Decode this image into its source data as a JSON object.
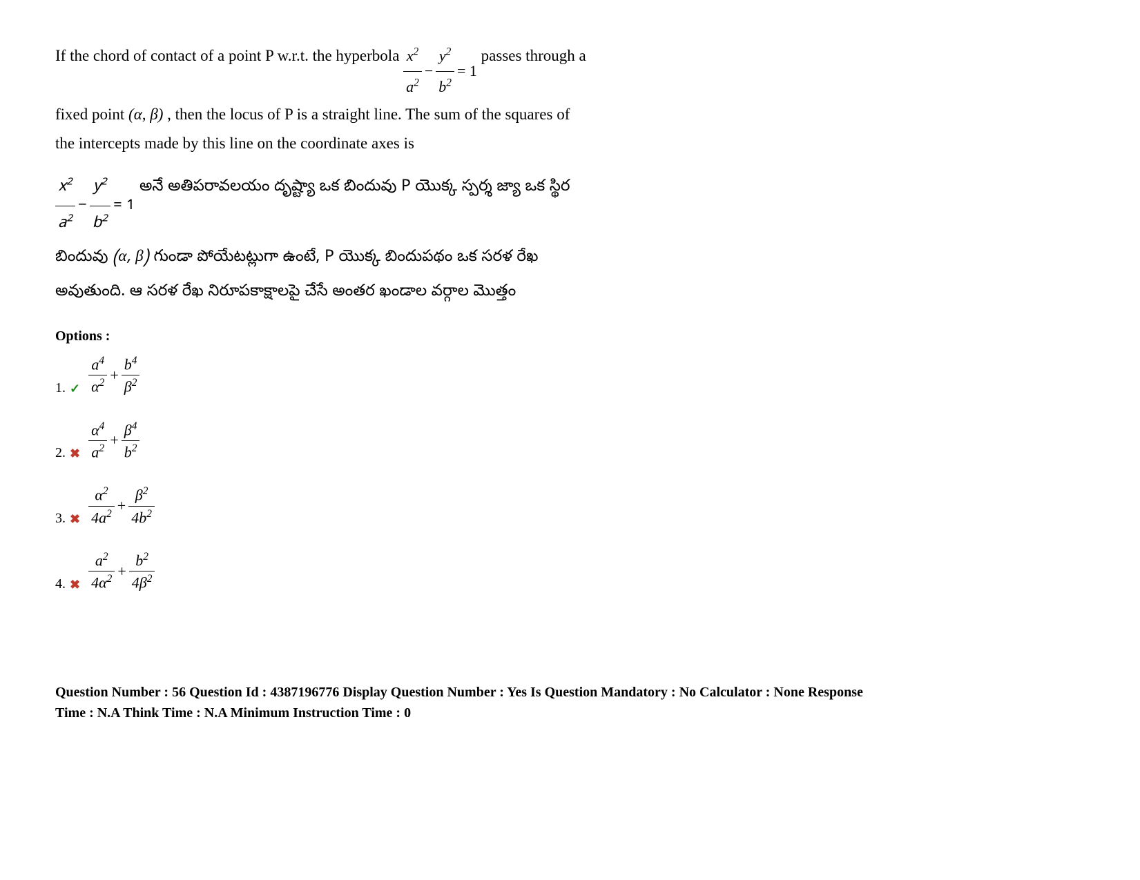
{
  "question": {
    "en_part1": "If the chord of contact of a point P w.r.t. the hyperbola ",
    "en_part2": " passes through a",
    "en_part3": "fixed point ",
    "en_point": "(α, β)",
    "en_part4": ", then the locus of P is a straight line.  The sum of the squares of",
    "en_part5": "the intercepts made by this line on the coordinate axes is",
    "te_part1": " అనే అతిపరావలయం దృష్ట్యా ఒక బిందువు P యొక్క స్పర్శ జ్యా ఒక స్థిర",
    "te_part2": "బిందువు ",
    "te_point": "(α, β)",
    "te_part3": " గుండా పోయేటట్లుగా ఉంటే, P యొక్క బిందుపథం ఒక సరళ రేఖ",
    "te_part4": "అవుతుంది.  ఆ సరళ రేఖ నిరూపకాక్షాలపై చేసే అంతర ఖండాల వర్గాల మొత్తం"
  },
  "hyperbola": {
    "x_num": "x",
    "x_sup": "2",
    "x_den": "a",
    "x_den_sup": "2",
    "minus": "−",
    "y_num": "y",
    "y_sup": "2",
    "y_den": "b",
    "y_den_sup": "2",
    "equals": "= 1"
  },
  "options_label": "Options :",
  "options": [
    {
      "number": "1.",
      "correct": true,
      "mark": "✓",
      "frac1_num": "a",
      "frac1_num_sup": "4",
      "frac1_den": "α",
      "frac1_den_sup": "2",
      "plus": "+",
      "frac2_num": "b",
      "frac2_num_sup": "4",
      "frac2_den": "β",
      "frac2_den_sup": "2"
    },
    {
      "number": "2.",
      "correct": false,
      "mark": "✖",
      "frac1_num": "α",
      "frac1_num_sup": "4",
      "frac1_den": "a",
      "frac1_den_sup": "2",
      "plus": "+",
      "frac2_num": "β",
      "frac2_num_sup": "4",
      "frac2_den": "b",
      "frac2_den_sup": "2"
    },
    {
      "number": "3.",
      "correct": false,
      "mark": "✖",
      "frac1_num": "α",
      "frac1_num_sup": "2",
      "frac1_den": "4a",
      "frac1_den_sup": "2",
      "plus": "+",
      "frac2_num": "β",
      "frac2_num_sup": "2",
      "frac2_den": "4b",
      "frac2_den_sup": "2"
    },
    {
      "number": "4.",
      "correct": false,
      "mark": "✖",
      "frac1_num": "a",
      "frac1_num_sup": "2",
      "frac1_den": "4α",
      "frac1_den_sup": "2",
      "plus": "+",
      "frac2_num": "b",
      "frac2_num_sup": "2",
      "frac2_den": "4β",
      "frac2_den_sup": "2"
    }
  ],
  "meta": {
    "line1": "Question Number : 56 Question Id : 4387196776 Display Question Number : Yes Is Question Mandatory : No Calculator : None Response",
    "line2": "Time : N.A Think Time : N.A Minimum Instruction Time : 0"
  }
}
